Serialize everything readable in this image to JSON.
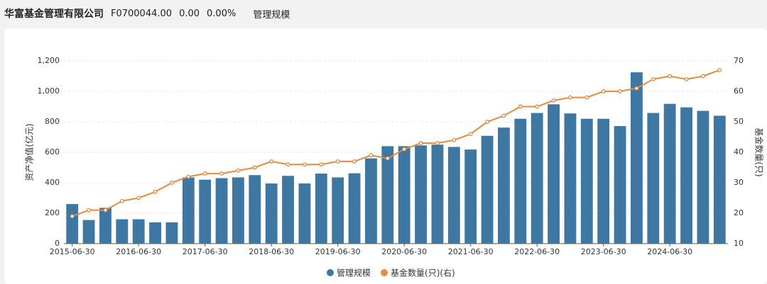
{
  "header": {
    "name": "华富基金管理有限公司",
    "code": "F0700044.00",
    "change": "0.00",
    "change_pct": "0.00%",
    "tab": "管理规模"
  },
  "chart_data": {
    "type": "bar",
    "ylabel": "资产净值(亿元)",
    "y2label": "基金数量(只)",
    "categories": [
      "2015-06-30",
      null,
      null,
      null,
      "2016-06-30",
      null,
      null,
      null,
      "2017-06-30",
      null,
      null,
      null,
      "2018-06-30",
      null,
      null,
      null,
      "2019-06-30",
      null,
      null,
      null,
      "2020-06-30",
      null,
      null,
      null,
      "2021-06-30",
      null,
      null,
      null,
      "2022-06-30",
      null,
      null,
      null,
      "2023-06-30",
      null,
      null,
      null,
      "2024-06-30",
      null,
      null,
      null
    ],
    "series": [
      {
        "name": "管理规模",
        "type": "bar",
        "color": "#3d77a2",
        "values": [
          260,
          155,
          235,
          160,
          160,
          140,
          140,
          435,
          420,
          430,
          435,
          450,
          395,
          445,
          395,
          460,
          435,
          462,
          560,
          640,
          640,
          645,
          650,
          635,
          618,
          708,
          762,
          820,
          858,
          915,
          855,
          820,
          820,
          772,
          1125,
          858,
          918,
          895,
          872,
          840
        ]
      },
      {
        "name": "基金数量(只)(右)",
        "type": "line",
        "axis": "y2",
        "color": "#e8893c",
        "values": [
          19,
          21,
          21,
          24,
          25,
          27,
          30,
          32,
          33,
          33,
          34,
          35,
          37,
          36,
          36,
          36,
          37,
          37,
          39,
          38,
          41,
          43,
          43,
          44,
          46,
          50,
          52,
          55,
          55,
          57,
          58,
          58,
          60,
          60,
          61,
          64,
          65,
          64,
          65,
          67
        ]
      }
    ],
    "ylim": [
      0,
      1200
    ],
    "yticks": [
      0,
      200,
      400,
      600,
      800,
      {
        "value": 1000,
        "label": "1,000"
      },
      {
        "value": 1200,
        "label": "1,200"
      }
    ],
    "y2lim": [
      10,
      70
    ],
    "y2ticks": [
      10,
      20,
      30,
      40,
      50,
      60,
      70
    ],
    "grid": true
  }
}
